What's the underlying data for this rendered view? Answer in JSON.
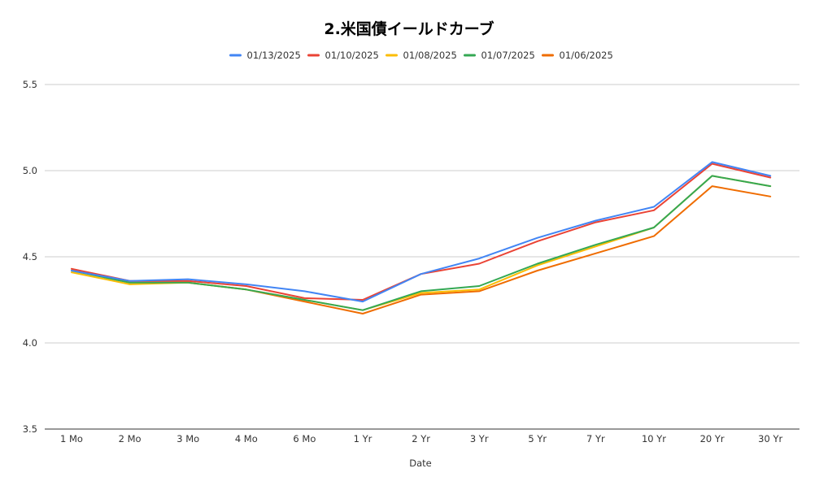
{
  "chart_data": {
    "type": "line",
    "title": "2.米国債イールドカーブ",
    "xlabel": "Date",
    "ylabel": "",
    "ylim": [
      3.5,
      5.5
    ],
    "yticks": [
      "3.5",
      "4.0",
      "4.5",
      "5.0",
      "5.5"
    ],
    "grid": true,
    "legend_position": "top",
    "categories": [
      "1 Mo",
      "2 Mo",
      "3 Mo",
      "4 Mo",
      "6 Mo",
      "1 Yr",
      "2 Yr",
      "3 Yr",
      "5 Yr",
      "7 Yr",
      "10 Yr",
      "20 Yr",
      "30 Yr"
    ],
    "series": [
      {
        "name": "01/06/2025",
        "color": "#ef6c00",
        "values": [
          4.43,
          4.35,
          4.35,
          4.31,
          4.24,
          4.17,
          4.28,
          4.3,
          4.42,
          4.52,
          4.62,
          4.91,
          4.85
        ]
      },
      {
        "name": "01/08/2025",
        "color": "#fbbc04",
        "values": [
          4.41,
          4.34,
          4.35,
          4.31,
          4.25,
          4.19,
          4.29,
          4.31,
          4.45,
          4.56,
          4.67,
          4.97,
          4.91
        ]
      },
      {
        "name": "01/07/2025",
        "color": "#34a853",
        "values": [
          4.42,
          4.35,
          4.35,
          4.31,
          4.25,
          4.19,
          4.3,
          4.33,
          4.46,
          4.57,
          4.67,
          4.97,
          4.91
        ]
      },
      {
        "name": "01/10/2025",
        "color": "#ea4335",
        "values": [
          4.43,
          4.36,
          4.36,
          4.33,
          4.26,
          4.25,
          4.4,
          4.46,
          4.59,
          4.7,
          4.77,
          5.04,
          4.96
        ]
      },
      {
        "name": "01/13/2025",
        "color": "#4285f4",
        "values": [
          4.42,
          4.36,
          4.37,
          4.34,
          4.3,
          4.24,
          4.4,
          4.49,
          4.61,
          4.71,
          4.79,
          5.05,
          4.97
        ]
      }
    ],
    "legend_order": [
      "01/13/2025",
      "01/10/2025",
      "01/08/2025",
      "01/07/2025",
      "01/06/2025"
    ]
  }
}
